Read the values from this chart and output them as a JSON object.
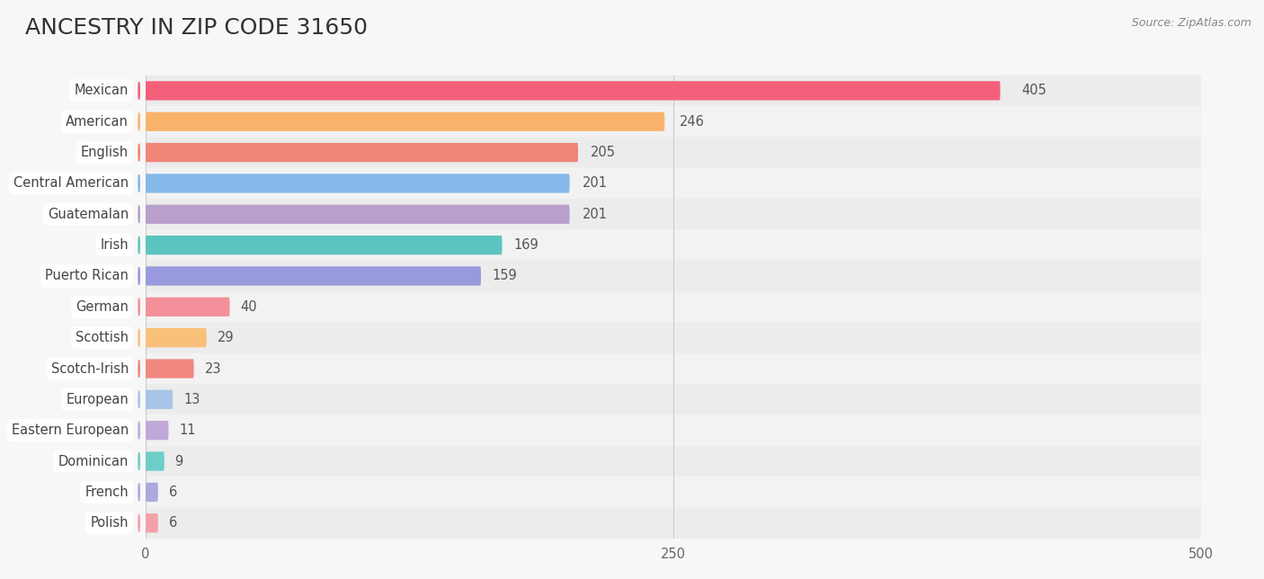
{
  "title": "ANCESTRY IN ZIP CODE 31650",
  "source": "Source: ZipAtlas.com",
  "categories": [
    "Mexican",
    "American",
    "English",
    "Central American",
    "Guatemalan",
    "Irish",
    "Puerto Rican",
    "German",
    "Scottish",
    "Scotch-Irish",
    "European",
    "Eastern European",
    "Dominican",
    "French",
    "Polish"
  ],
  "values": [
    405,
    246,
    205,
    201,
    201,
    169,
    159,
    40,
    29,
    23,
    13,
    11,
    9,
    6,
    6
  ],
  "colors": [
    "#F4607A",
    "#F9B36B",
    "#F08578",
    "#85B8E8",
    "#B89FCC",
    "#5DC5C0",
    "#9999DD",
    "#F4909A",
    "#F9C07A",
    "#F08880",
    "#A8C4E8",
    "#C0A8D8",
    "#6DCEC8",
    "#AAAADD",
    "#F4A0A8"
  ],
  "xlim": [
    0,
    500
  ],
  "xticks": [
    0,
    250,
    500
  ],
  "background_color": "#f7f7f7",
  "row_colors": [
    "#ececec",
    "#f2f2f2"
  ],
  "title_fontsize": 18,
  "label_fontsize": 10.5,
  "value_fontsize": 10.5
}
